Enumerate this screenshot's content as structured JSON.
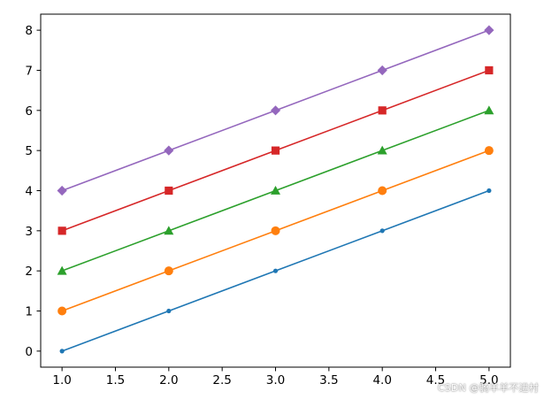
{
  "chart_data": {
    "type": "line",
    "xlim": [
      0.8,
      5.2
    ],
    "ylim": [
      -0.4,
      8.4
    ],
    "x_ticks": [
      "1.0",
      "1.5",
      "2.0",
      "2.5",
      "3.0",
      "3.5",
      "4.0",
      "4.5",
      "5.0"
    ],
    "y_ticks": [
      "0",
      "1",
      "2",
      "3",
      "4",
      "5",
      "6",
      "7",
      "8"
    ],
    "grid": false,
    "x": [
      1,
      2,
      3,
      4,
      5
    ],
    "series": [
      {
        "values": [
          0,
          1,
          2,
          3,
          4
        ],
        "color": "#1f77b4",
        "marker": "point"
      },
      {
        "values": [
          1,
          2,
          3,
          4,
          5
        ],
        "color": "#ff7f0e",
        "marker": "circle"
      },
      {
        "values": [
          2,
          3,
          4,
          5,
          6
        ],
        "color": "#2ca02c",
        "marker": "triangle"
      },
      {
        "values": [
          3,
          4,
          5,
          6,
          7
        ],
        "color": "#d62728",
        "marker": "square"
      },
      {
        "values": [
          4,
          5,
          6,
          7,
          8
        ],
        "color": "#9467bd",
        "marker": "diamond"
      }
    ]
  },
  "watermark": "CSDN @骑羊羊不进村"
}
